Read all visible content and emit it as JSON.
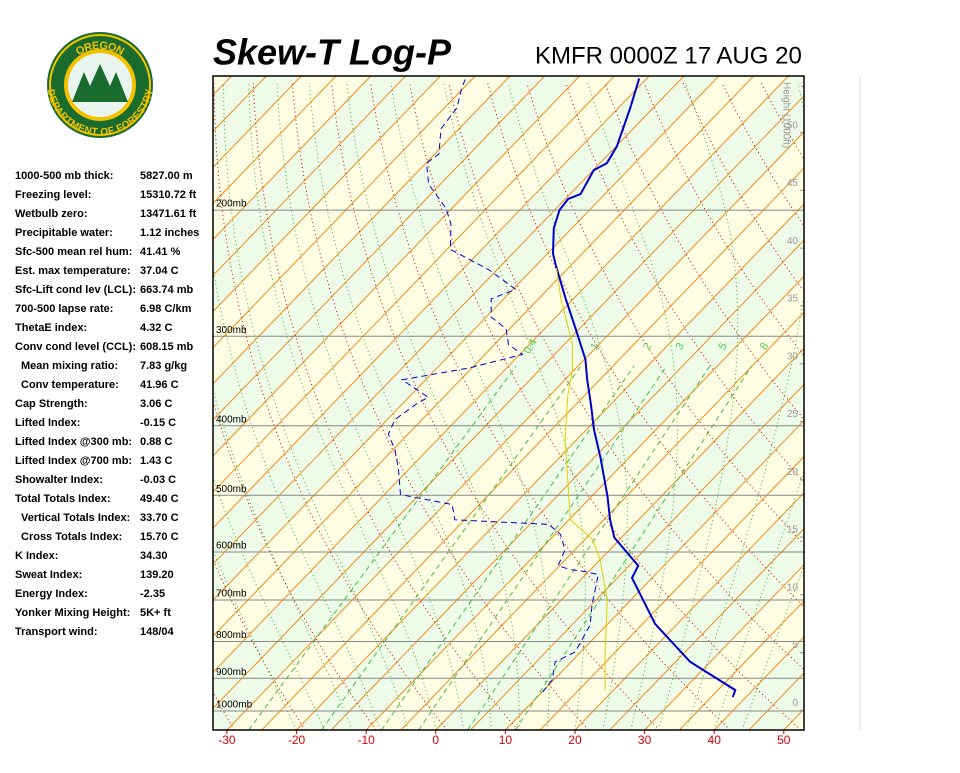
{
  "header": {
    "title": "Skew-T Log-P",
    "station": "KMFR 0000Z 17 AUG 20"
  },
  "logo": {
    "top": "OREGON",
    "bottom": "DEPARTMENT OF FORESTRY"
  },
  "stats": [
    {
      "label": "1000-500 mb thick:",
      "value": "5827.00 m"
    },
    {
      "label": "Freezing level:",
      "value": "15310.72 ft"
    },
    {
      "label": "Wetbulb zero:",
      "value": "13471.61 ft"
    },
    {
      "label": "Precipitable water:",
      "value": "1.12 inches"
    },
    {
      "label": "Sfc-500 mean rel hum:",
      "value": "41.41 %"
    },
    {
      "label": "Est. max temperature:",
      "value": "37.04 C"
    },
    {
      "label": "Sfc-Lift cond lev (LCL):",
      "value": "663.74 mb"
    },
    {
      "label": "700-500 lapse rate:",
      "value": "6.98 C/km"
    },
    {
      "label": "ThetaE index:",
      "value": "4.32 C"
    },
    {
      "label": "Conv cond level (CCL):",
      "value": "608.15 mb"
    },
    {
      "label": "Mean mixing ratio:",
      "value": "7.83 g/kg",
      "indent": true
    },
    {
      "label": "Conv temperature:",
      "value": "41.96 C",
      "indent": true
    },
    {
      "label": "Cap Strength:",
      "value": "3.06 C"
    },
    {
      "label": "Lifted Index:",
      "value": "-0.15 C"
    },
    {
      "label": "Lifted Index @300 mb:",
      "value": "0.88 C"
    },
    {
      "label": "Lifted Index @700 mb:",
      "value": "1.43 C"
    },
    {
      "label": "Showalter Index:",
      "value": "-0.03 C"
    },
    {
      "label": "Total Totals Index:",
      "value": "49.40 C"
    },
    {
      "label": "Vertical Totals Index:",
      "value": "33.70 C",
      "indent": true
    },
    {
      "label": "Cross Totals Index:",
      "value": "15.70 C",
      "indent": true
    },
    {
      "label": "K Index:",
      "value": "34.30"
    },
    {
      "label": "Sweat Index:",
      "value": "139.20"
    },
    {
      "label": "Energy Index:",
      "value": "-2.35"
    },
    {
      "label": "Yonker Mixing Height:",
      "value": "5K+ ft"
    },
    {
      "label": "Transport wind:",
      "value": "148/04"
    }
  ],
  "chart_data": {
    "type": "skewt",
    "log": true,
    "xlim": [
      -32,
      52.9
    ],
    "xticks": [
      -30,
      -20,
      -10,
      0,
      10,
      20,
      30,
      40,
      50
    ],
    "ylim": [
      1063,
      130
    ],
    "yticks": [
      {
        "value": 200,
        "label": "200mb"
      },
      {
        "value": 300,
        "label": "300mb"
      },
      {
        "value": 400,
        "label": "400mb"
      },
      {
        "value": 500,
        "label": "500mb"
      },
      {
        "value": 600,
        "label": "600mb"
      },
      {
        "value": 700,
        "label": "700mb"
      },
      {
        "value": 800,
        "label": "800mb"
      },
      {
        "value": 900,
        "label": "900mb"
      },
      {
        "value": 1000,
        "label": "1000mb"
      }
    ],
    "y2label": "Height (1000ft)",
    "y2lim": [
      -1.7,
      54.9
    ],
    "y2ticks": [
      0,
      5,
      10,
      15,
      20,
      25,
      30,
      35,
      40,
      45,
      50
    ],
    "mixing_ratios": [
      0.4,
      1,
      2,
      3,
      5,
      8
    ],
    "series": [
      {
        "color": "#0000cc",
        "width": 2,
        "dashed": false,
        "x": [
          38.1,
          37.5,
          27.1,
          16.8,
          7.1,
          6.3,
          -1.0,
          -4.1,
          -7.7,
          -14.1,
          -18.9,
          -22.9,
          -26.8,
          -29.9,
          -35.5,
          -41.1,
          -46.9,
          -49.2,
          -52.6,
          -54.3,
          -54.6,
          -53.5,
          -54.9,
          -54.0,
          -54.9,
          -58.3,
          -61.1
        ],
        "values": [
          956,
          935,
          854,
          756,
          652,
          627,
          573,
          541,
          502,
          443,
          405,
          373,
          345,
          323,
          293,
          266,
          240,
          230,
          212,
          200,
          193,
          190,
          176,
          172,
          163,
          144,
          131
        ]
      },
      {
        "color": "#0000cc",
        "width": 1,
        "dashed": true,
        "x": [
          10.1,
          9.8,
          7.7,
          9.2,
          8.5,
          7.6,
          5.1,
          1.8,
          -0.5,
          -2.9,
          -5.2,
          -6.4,
          -9.2,
          -12.3,
          -26.4,
          -28.9,
          -37.7,
          -41.5,
          -44.7,
          -47.8,
          -48.9,
          -48.0,
          -47.2,
          -53.4,
          -45.3,
          -39.6,
          -43.0,
          -45.5,
          -49.3,
          -51.8,
          -50.1,
          -49.6,
          -56.3,
          -64.5,
          -68.0,
          -70.8,
          -76.7,
          -79.9,
          -79.4,
          -82.6,
          -83.2,
          -85.3,
          -86.2
        ],
        "values": [
          941,
          905,
          854,
          827,
          796,
          758,
          711,
          645,
          639,
          635,
          627,
          596,
          567,
          549,
          541,
          515,
          499,
          460,
          432,
          411,
          392,
          373,
          365,
          345,
          332,
          318,
          308,
          293,
          282,
          266,
          260,
          258,
          242,
          227,
          209,
          199,
          184,
          172,
          167,
          154,
          144,
          135,
          130
        ]
      },
      {
        "color": "#e0d000",
        "width": 1,
        "dashed": false,
        "x": [
          18.8,
          14.6,
          6.6,
          0.0,
          -3.8,
          -8.4,
          -9.8,
          -21.7,
          -27.5,
          -30.3,
          -33.8,
          -41.8,
          -46.7
        ],
        "values": [
          935,
          849,
          700,
          615,
          577,
          549,
          541,
          418,
          362,
          334,
          308,
          266,
          241
        ]
      }
    ]
  }
}
